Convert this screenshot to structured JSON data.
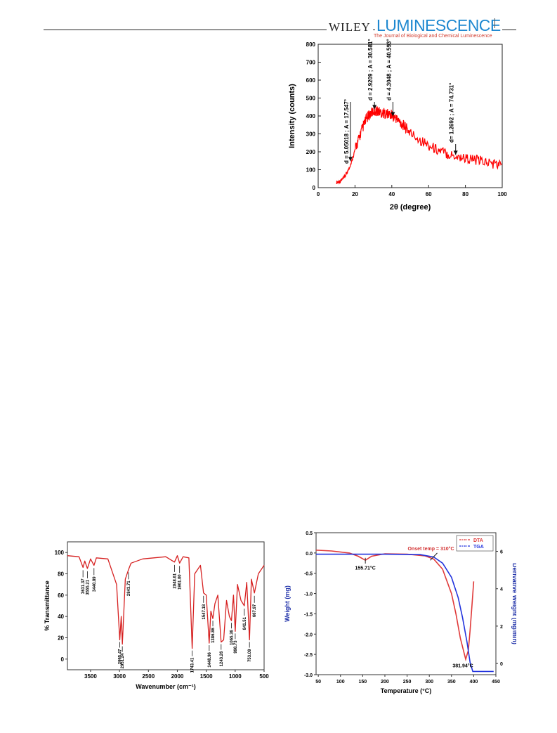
{
  "header": {
    "publisher": "WILEY",
    "journal": "LUMINESCENCE",
    "journal_sub": "The Journal of Biological and Chemical Luminescence"
  },
  "chart_data": [
    {
      "type": "line",
      "panel": "xrd",
      "xlabel": "2θ  (degree)",
      "ylabel": "Intensity (counts)",
      "xlim": [
        0,
        100
      ],
      "ylim": [
        0,
        800
      ],
      "xticks": [
        "0",
        "20",
        "40",
        "60",
        "80",
        "100"
      ],
      "yticks": [
        "0",
        "100",
        "200",
        "300",
        "400",
        "500",
        "600",
        "700",
        "800"
      ],
      "color": "#ff0000",
      "series": [
        {
          "x": [
            10,
            12,
            14,
            16,
            18,
            20,
            22,
            24,
            26,
            28,
            30,
            32,
            34,
            36,
            38,
            40,
            42,
            44,
            46,
            48,
            50,
            55,
            60,
            65,
            70,
            75,
            80,
            85,
            90,
            95,
            100
          ],
          "y": [
            30,
            35,
            55,
            90,
            140,
            210,
            270,
            330,
            380,
            410,
            425,
            430,
            420,
            415,
            410,
            405,
            390,
            370,
            350,
            330,
            305,
            270,
            235,
            210,
            190,
            175,
            165,
            155,
            145,
            135,
            125
          ]
        }
      ],
      "annotations": [
        {
          "x": 17.5,
          "text": "d = 5.05018 ; A = 17.547°"
        },
        {
          "x": 30.6,
          "text": "d = 2.9209 ; A = 30.581°"
        },
        {
          "x": 40.6,
          "text": "d = 4.3048 ; A = 40.593°"
        },
        {
          "x": 74.7,
          "text": "d= 1.2692 ; A = 74.731°"
        }
      ]
    },
    {
      "type": "line",
      "panel": "ftir",
      "xlabel": "Wavenumber (cm⁻¹)",
      "ylabel": "% Transmittance",
      "xlim": [
        3900,
        500
      ],
      "ylim": [
        -10,
        110
      ],
      "xticks": [
        "3500",
        "3000",
        "2500",
        "2000",
        "1500",
        "1000",
        "500"
      ],
      "yticks": [
        "0",
        "20",
        "40",
        "60",
        "80",
        "100"
      ],
      "color": "#d62020",
      "series": [
        {
          "x": [
            3900,
            3700,
            3631,
            3600,
            3555,
            3500,
            3441,
            3400,
            3200,
            3050,
            2995,
            2970,
            2951,
            2900,
            2844,
            2800,
            2600,
            2200,
            2049,
            2000,
            1961,
            1900,
            1800,
            1743,
            1700,
            1600,
            1547,
            1500,
            1449,
            1420,
            1386,
            1350,
            1300,
            1243,
            1200,
            1150,
            1100,
            1065,
            1030,
            999,
            960,
            900,
            842,
            800,
            753,
            720,
            668,
            600,
            500
          ],
          "y": [
            97,
            96,
            86,
            92,
            85,
            94,
            88,
            95,
            94,
            70,
            18,
            40,
            14,
            75,
            84,
            90,
            94,
            96,
            91,
            97,
            90,
            96,
            95,
            10,
            80,
            88,
            62,
            60,
            15,
            45,
            38,
            52,
            60,
            16,
            18,
            55,
            40,
            36,
            60,
            26,
            70,
            55,
            50,
            72,
            18,
            75,
            62,
            80,
            88
          ]
        }
      ],
      "annotations": [
        {
          "x": 3631,
          "text": "3631.37"
        },
        {
          "x": 3555,
          "text": "3555.21"
        },
        {
          "x": 3441,
          "text": "3440.89"
        },
        {
          "x": 2995,
          "text": "2995.47"
        },
        {
          "x": 2951,
          "text": "2951.24"
        },
        {
          "x": 2844,
          "text": "2843.71"
        },
        {
          "x": 2049,
          "text": "2048.61"
        },
        {
          "x": 1961,
          "text": "1961.00"
        },
        {
          "x": 1743,
          "text": "1743.41"
        },
        {
          "x": 1547,
          "text": "1547.18"
        },
        {
          "x": 1449,
          "text": "1448.96"
        },
        {
          "x": 1386,
          "text": "1386.86"
        },
        {
          "x": 1243,
          "text": "1243.26"
        },
        {
          "x": 1065,
          "text": "1065.36"
        },
        {
          "x": 999,
          "text": "998.73"
        },
        {
          "x": 842,
          "text": "841.51"
        },
        {
          "x": 753,
          "text": "753.09"
        },
        {
          "x": 668,
          "text": "667.97"
        }
      ]
    },
    {
      "type": "line",
      "panel": "thermal",
      "xlabel": "Temperature (°C)",
      "ylabel": "Weight (mg)",
      "y2label": "Derivative Weight (mg/min)",
      "xlim": [
        45,
        450
      ],
      "ylim": [
        -3.0,
        0.5
      ],
      "y2lim": [
        -0.6,
        7.0
      ],
      "xticks": [
        "50",
        "100",
        "150",
        "200",
        "250",
        "300",
        "350",
        "400",
        "450"
      ],
      "yticks": [
        "0.5",
        "0.0",
        "-0.5",
        "-1.0",
        "-1.5",
        "-2.0",
        "-2.5",
        "-3.0"
      ],
      "y2ticks": [
        "0",
        "2",
        "4",
        "6"
      ],
      "series": [
        {
          "name": "DTA",
          "color": "#e03a3a",
          "x": [
            45,
            80,
            120,
            140,
            156,
            170,
            200,
            250,
            290,
            310,
            330,
            350,
            360,
            370,
            382,
            388,
            392,
            396,
            400
          ],
          "y": [
            0.07,
            0.05,
            0.0,
            -0.08,
            -0.18,
            -0.08,
            -0.02,
            -0.03,
            -0.07,
            -0.15,
            -0.4,
            -1.0,
            -1.5,
            -2.1,
            -2.62,
            -2.4,
            -1.9,
            -1.3,
            -0.7
          ]
        },
        {
          "name": "TGA",
          "color": "#2233dd",
          "x": [
            45,
            100,
            200,
            280,
            310,
            330,
            350,
            365,
            375,
            385,
            392,
            398,
            420,
            445
          ],
          "y": [
            -0.03,
            -0.03,
            -0.03,
            -0.04,
            -0.1,
            -0.25,
            -0.6,
            -1.1,
            -1.6,
            -2.2,
            -2.7,
            -2.92,
            -2.92,
            -2.92
          ]
        }
      ],
      "annotations": [
        {
          "x": 156,
          "y": -0.2,
          "text": "155.71°C"
        },
        {
          "x": 382,
          "y": -2.75,
          "text": "381.94°C"
        },
        {
          "x": 310,
          "y": 0.12,
          "text": "Onset temp = 310°C"
        }
      ]
    }
  ]
}
